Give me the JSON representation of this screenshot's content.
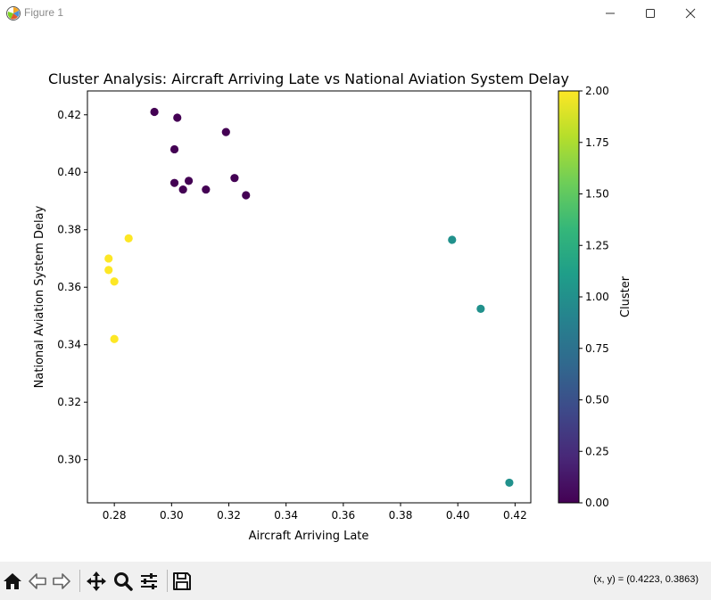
{
  "window": {
    "title": "Figure 1",
    "buttons": [
      "minimize",
      "maximize",
      "close"
    ]
  },
  "toolbar": {
    "tools": [
      {
        "name": "home-icon"
      },
      {
        "name": "back-arrow-icon"
      },
      {
        "name": "forward-arrow-icon"
      },
      {
        "name": "pan-move-icon"
      },
      {
        "name": "zoom-magnifier-icon"
      },
      {
        "name": "configure-subplots-icon"
      },
      {
        "name": "save-floppy-icon"
      }
    ],
    "coordinates": "(x, y) = (0.4223, 0.3863)"
  },
  "chart_data": {
    "type": "scatter",
    "title": "Cluster Analysis: Aircraft Arriving Late vs National Aviation System Delay",
    "xlabel": "Aircraft Arriving Late",
    "ylabel": "National Aviation System Delay",
    "xlim": [
      0.2706,
      0.4255
    ],
    "ylim": [
      0.285,
      0.4283
    ],
    "xticks": [
      "0.28",
      "0.30",
      "0.32",
      "0.34",
      "0.36",
      "0.38",
      "0.40",
      "0.42"
    ],
    "yticks": [
      "0.30",
      "0.32",
      "0.34",
      "0.36",
      "0.38",
      "0.40",
      "0.42"
    ],
    "grid": false,
    "colormap": "viridis",
    "colorbar": {
      "label": "Cluster",
      "range": [
        0.0,
        2.0
      ],
      "ticks": [
        "0.00",
        "0.25",
        "0.50",
        "0.75",
        "1.00",
        "1.25",
        "1.50",
        "1.75",
        "2.00"
      ],
      "stops": [
        "#440154",
        "#482878",
        "#3e4989",
        "#31688e",
        "#26828e",
        "#1f9e89",
        "#35b779",
        "#6ece58",
        "#b5de2b",
        "#fde725"
      ]
    },
    "cluster_colors": {
      "0": "#440154",
      "1": "#21918c",
      "2": "#fde725"
    },
    "points": [
      {
        "x": 0.294,
        "y": 0.421,
        "cluster": 0
      },
      {
        "x": 0.302,
        "y": 0.419,
        "cluster": 0
      },
      {
        "x": 0.319,
        "y": 0.414,
        "cluster": 0
      },
      {
        "x": 0.301,
        "y": 0.408,
        "cluster": 0
      },
      {
        "x": 0.322,
        "y": 0.398,
        "cluster": 0
      },
      {
        "x": 0.306,
        "y": 0.397,
        "cluster": 0
      },
      {
        "x": 0.301,
        "y": 0.3963,
        "cluster": 0
      },
      {
        "x": 0.304,
        "y": 0.394,
        "cluster": 0
      },
      {
        "x": 0.312,
        "y": 0.394,
        "cluster": 0
      },
      {
        "x": 0.326,
        "y": 0.392,
        "cluster": 0
      },
      {
        "x": 0.398,
        "y": 0.3765,
        "cluster": 1
      },
      {
        "x": 0.408,
        "y": 0.3525,
        "cluster": 1
      },
      {
        "x": 0.418,
        "y": 0.292,
        "cluster": 1
      },
      {
        "x": 0.285,
        "y": 0.377,
        "cluster": 2
      },
      {
        "x": 0.278,
        "y": 0.37,
        "cluster": 2
      },
      {
        "x": 0.278,
        "y": 0.366,
        "cluster": 2
      },
      {
        "x": 0.28,
        "y": 0.362,
        "cluster": 2
      },
      {
        "x": 0.28,
        "y": 0.342,
        "cluster": 2
      }
    ]
  }
}
